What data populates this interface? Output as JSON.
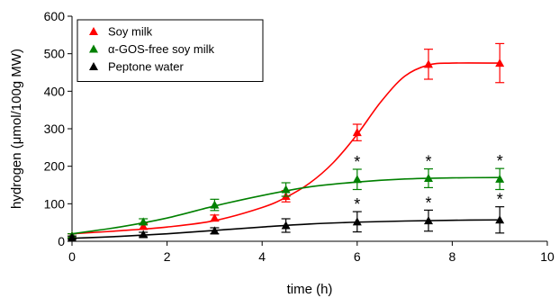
{
  "chart_data": {
    "type": "line",
    "xlabel": "time (h)",
    "ylabel": "hydrogen (μmol/100g MW)",
    "xlim": [
      0,
      10
    ],
    "ylim": [
      0,
      600
    ],
    "xticks": [
      0,
      2,
      4,
      6,
      8,
      10
    ],
    "yticks": [
      0,
      100,
      200,
      300,
      400,
      500,
      600
    ],
    "grid": false,
    "legend_position": "top-left",
    "significance_marker": "*",
    "series": [
      {
        "name": "Soy milk",
        "color": "#ff0000",
        "marker": "triangle",
        "x": [
          0,
          1.5,
          3,
          4.5,
          6,
          7.5,
          9
        ],
        "y": [
          15,
          40,
          62,
          120,
          290,
          472,
          475
        ],
        "err": [
          5,
          8,
          8,
          15,
          22,
          40,
          52
        ],
        "significant": [
          false,
          false,
          false,
          false,
          false,
          false,
          false
        ],
        "fit": [
          [
            0,
            20
          ],
          [
            1,
            28
          ],
          [
            2,
            38
          ],
          [
            3,
            55
          ],
          [
            4,
            90
          ],
          [
            4.5,
            117
          ],
          [
            5,
            155
          ],
          [
            5.5,
            210
          ],
          [
            6,
            285
          ],
          [
            6.5,
            372
          ],
          [
            7,
            440
          ],
          [
            7.5,
            470
          ],
          [
            8,
            475
          ],
          [
            9,
            475
          ]
        ]
      },
      {
        "name": "α-GOS-free soy milk",
        "color": "#008000",
        "marker": "triangle",
        "x": [
          0,
          1.5,
          3,
          4.5,
          6,
          7.5,
          9
        ],
        "y": [
          15,
          52,
          97,
          138,
          165,
          168,
          166
        ],
        "err": [
          5,
          8,
          15,
          18,
          27,
          25,
          28
        ],
        "significant": [
          false,
          false,
          false,
          false,
          true,
          true,
          true
        ],
        "fit": [
          [
            0,
            20
          ],
          [
            1,
            38
          ],
          [
            2,
            62
          ],
          [
            3,
            94
          ],
          [
            4,
            122
          ],
          [
            5,
            145
          ],
          [
            6,
            158
          ],
          [
            7,
            166
          ],
          [
            8,
            169
          ],
          [
            9,
            170
          ]
        ]
      },
      {
        "name": "Peptone water",
        "color": "#000000",
        "marker": "triangle",
        "x": [
          0,
          1.5,
          3,
          4.5,
          6,
          7.5,
          9
        ],
        "y": [
          10,
          18,
          28,
          42,
          52,
          55,
          57
        ],
        "err": [
          4,
          6,
          8,
          18,
          27,
          28,
          35
        ],
        "significant": [
          false,
          false,
          false,
          false,
          true,
          true,
          true
        ],
        "fit": [
          [
            0,
            8
          ],
          [
            1,
            13
          ],
          [
            2,
            20
          ],
          [
            3,
            29
          ],
          [
            4,
            38
          ],
          [
            5,
            46
          ],
          [
            6,
            51
          ],
          [
            7,
            54
          ],
          [
            8,
            56
          ],
          [
            9,
            57
          ]
        ]
      }
    ]
  }
}
